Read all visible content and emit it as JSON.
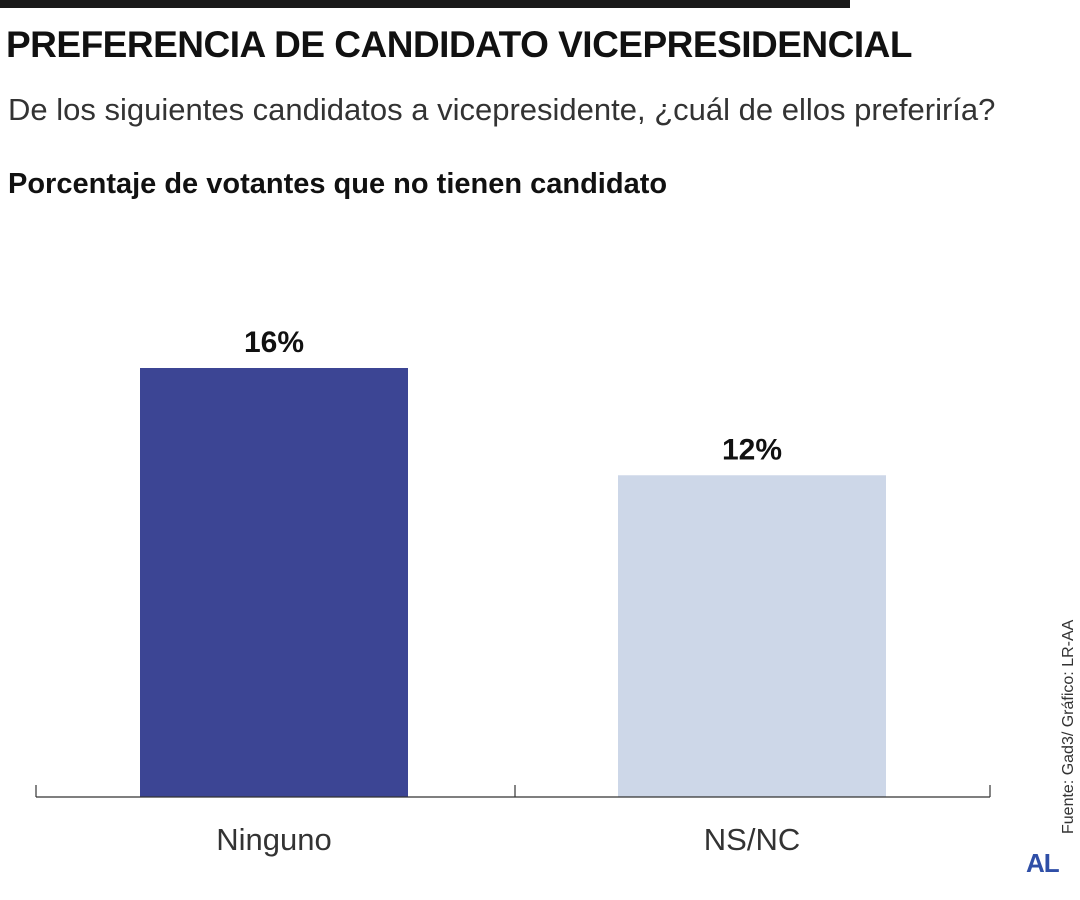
{
  "header": {
    "title": "PREFERENCIA DE CANDIDATO VICEPRESIDENCIAL",
    "subtitle": "De los siguientes candidatos a vicepresidente, ¿cuál de ellos preferiría?",
    "chart_title": "Porcentaje de votantes que no tienen candidato"
  },
  "footer": {
    "source": "Fuente: Gad3/ Gráfico: LR-AA",
    "logo": "AL"
  },
  "chart_data": {
    "type": "bar",
    "title": "Porcentaje de votantes que no tienen candidato",
    "categories": [
      "Ninguno",
      "NS/NC"
    ],
    "values": [
      16,
      12
    ],
    "value_labels": [
      "16%",
      "12%"
    ],
    "colors": [
      "#3c4594",
      "#cdd7e8"
    ],
    "xlabel": "",
    "ylabel": "",
    "ylim": [
      0,
      16
    ],
    "grid": false,
    "legend": "none"
  }
}
